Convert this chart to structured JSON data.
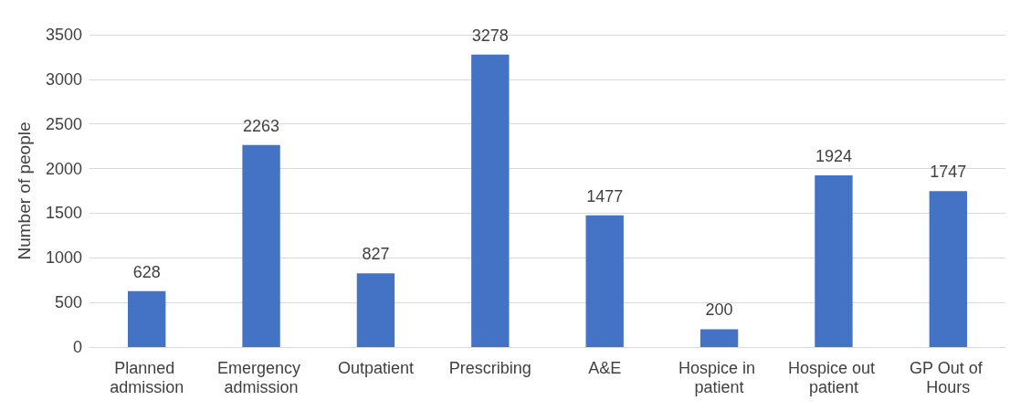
{
  "chart_data": {
    "type": "bar",
    "ylabel": "Number of people",
    "categories": [
      "Planned admission",
      "Emergency admission",
      "Outpatient",
      "Prescribing",
      "A&E",
      "Hospice in patient",
      "Hospice out patient",
      "GP Out of Hours"
    ],
    "values": [
      628,
      2263,
      827,
      3278,
      1477,
      200,
      1924,
      1747
    ],
    "color": "#4472c4",
    "ylim": [
      0,
      3500
    ],
    "yticks": [
      0,
      500,
      1000,
      1500,
      2000,
      2500,
      3000,
      3500
    ],
    "grid": "y",
    "data_labels": true
  }
}
